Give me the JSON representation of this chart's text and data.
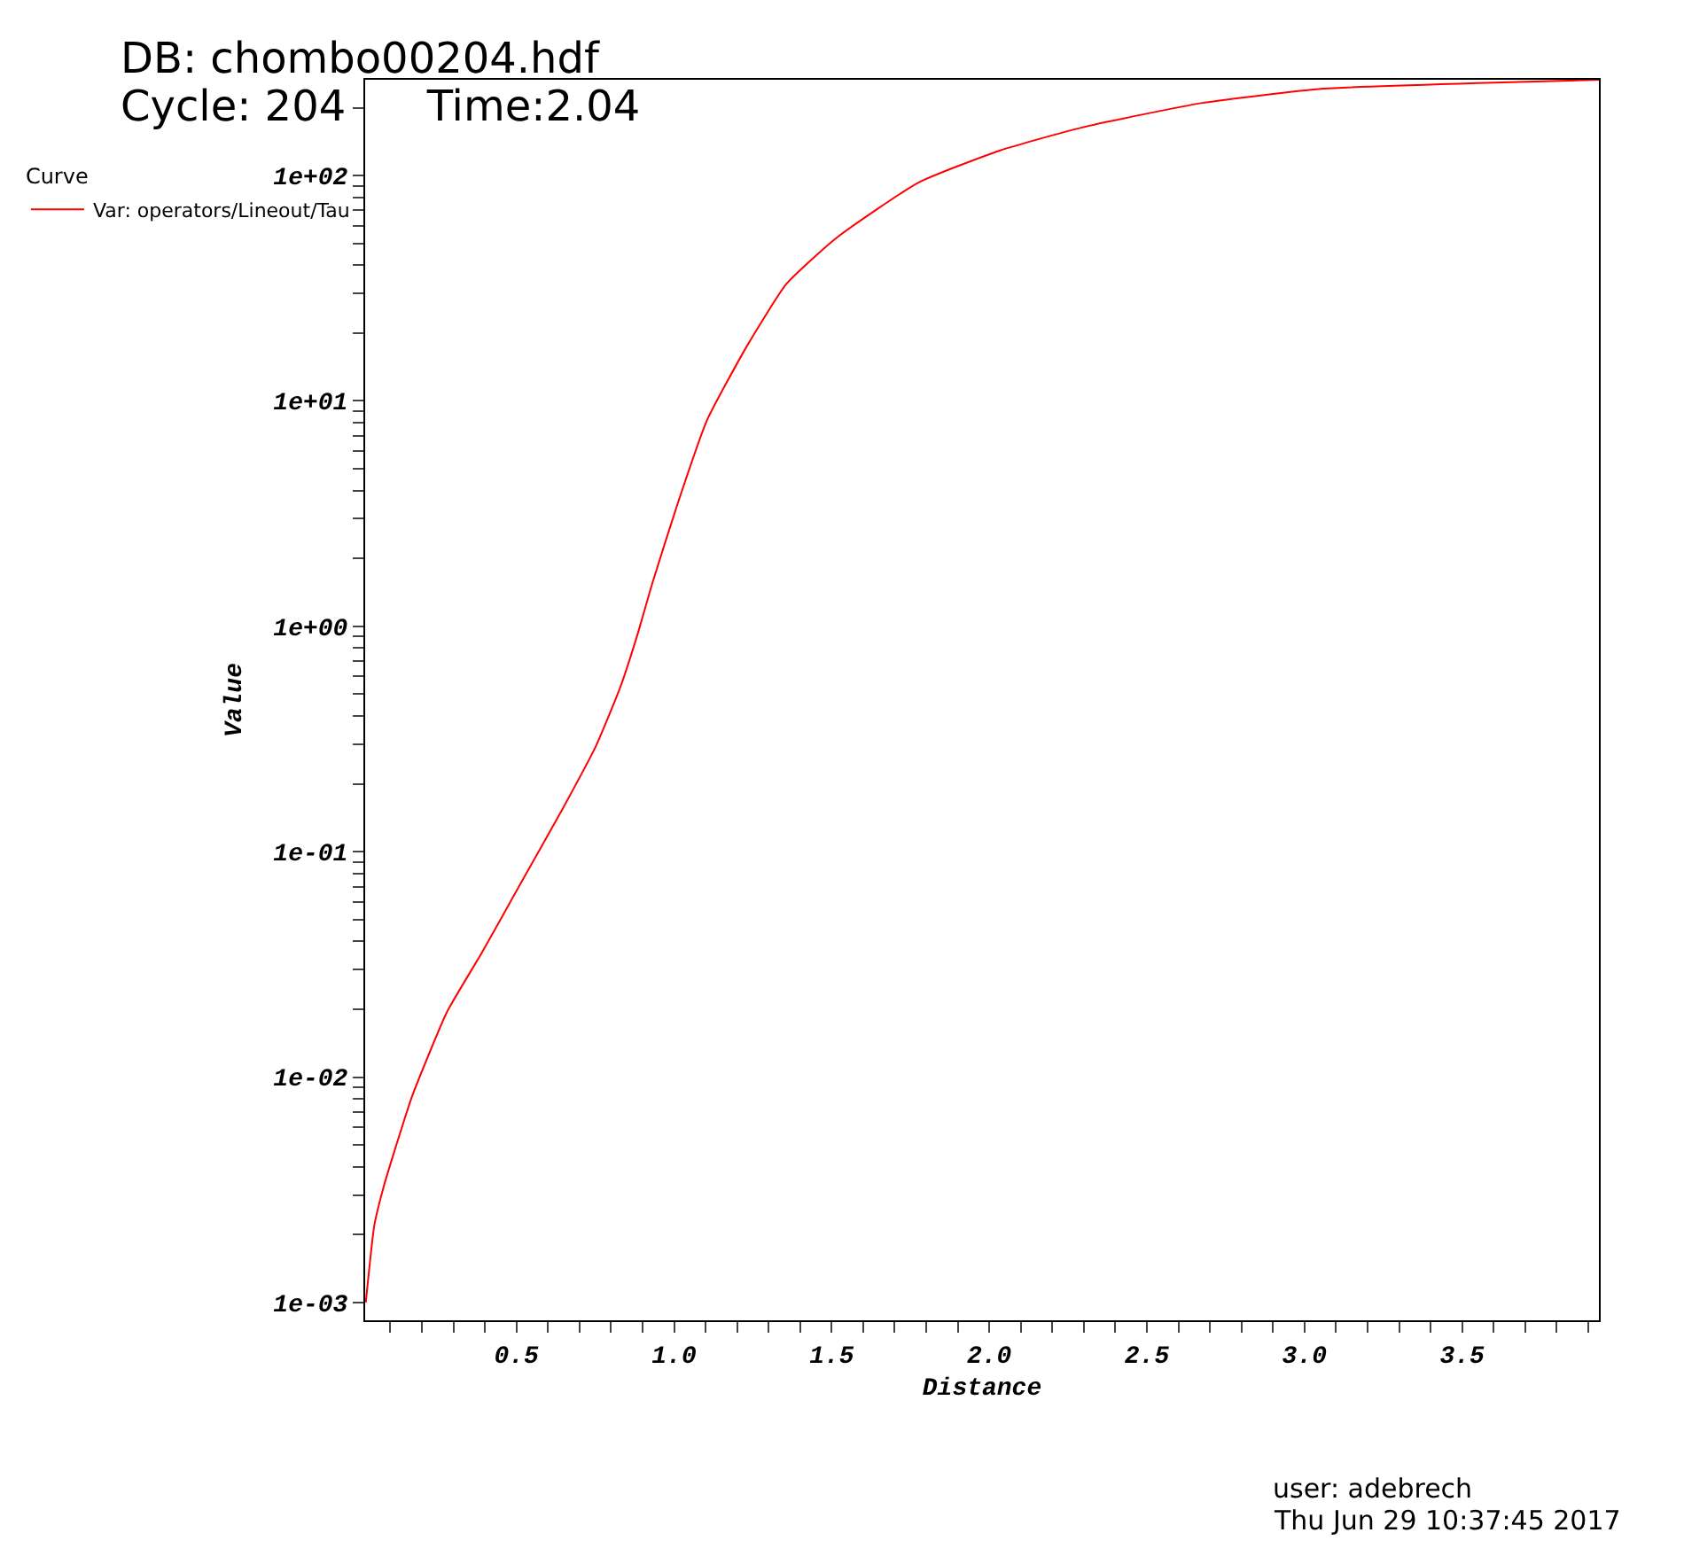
{
  "chart_data": {
    "type": "line",
    "title": "DB: chombo00204.hdf",
    "subtitle": "Cycle: 204      Time:2.04",
    "xlabel": "Distance",
    "ylabel": "Value",
    "legend_title": "Curve",
    "legend": "top left",
    "log": "y",
    "marker": "none",
    "line_style": "solid",
    "x": [
      0.022,
      0.049,
      0.077,
      0.115,
      0.17,
      0.28,
      0.39,
      0.516,
      0.643,
      0.753,
      0.83,
      0.885,
      0.929,
      1.011,
      1.104,
      1.231,
      1.357,
      1.516,
      1.775,
      2.033,
      2.291,
      2.676,
      3.06,
      3.549,
      3.934
    ],
    "series": [
      {
        "name": "Var: operators/Lineout/Tau",
        "color": "#ff0000",
        "values": [
          0.001,
          0.0022,
          0.0032,
          0.0048,
          0.0083,
          0.0195,
          0.0356,
          0.0735,
          0.152,
          0.296,
          0.54,
          0.93,
          1.52,
          3.49,
          8.18,
          17.5,
          33.1,
          53,
          93,
          129,
          163,
          210,
          243,
          257,
          266
        ]
      }
    ],
    "xlim": [
      0.02,
      3.934
    ],
    "ylim": [
      0.000834,
      266
    ],
    "xticks": [
      {
        "value": 0.1,
        "label": null
      },
      {
        "value": 0.2,
        "label": null
      },
      {
        "value": 0.3,
        "label": null
      },
      {
        "value": 0.4,
        "label": null
      },
      {
        "value": 0.5,
        "label": "0.5"
      },
      {
        "value": 0.6,
        "label": null
      },
      {
        "value": 0.7,
        "label": null
      },
      {
        "value": 0.8,
        "label": null
      },
      {
        "value": 0.9,
        "label": null
      },
      {
        "value": 1.0,
        "label": "1.0"
      },
      {
        "value": 1.1,
        "label": null
      },
      {
        "value": 1.2,
        "label": null
      },
      {
        "value": 1.3,
        "label": null
      },
      {
        "value": 1.4,
        "label": null
      },
      {
        "value": 1.5,
        "label": "1.5"
      },
      {
        "value": 1.6,
        "label": null
      },
      {
        "value": 1.7,
        "label": null
      },
      {
        "value": 1.8,
        "label": null
      },
      {
        "value": 1.9,
        "label": null
      },
      {
        "value": 2.0,
        "label": "2.0"
      },
      {
        "value": 2.1,
        "label": null
      },
      {
        "value": 2.2,
        "label": null
      },
      {
        "value": 2.3,
        "label": null
      },
      {
        "value": 2.4,
        "label": null
      },
      {
        "value": 2.5,
        "label": "2.5"
      },
      {
        "value": 2.6,
        "label": null
      },
      {
        "value": 2.7,
        "label": null
      },
      {
        "value": 2.8,
        "label": null
      },
      {
        "value": 2.9,
        "label": null
      },
      {
        "value": 3.0,
        "label": "3.0"
      },
      {
        "value": 3.1,
        "label": null
      },
      {
        "value": 3.2,
        "label": null
      },
      {
        "value": 3.3,
        "label": null
      },
      {
        "value": 3.4,
        "label": null
      },
      {
        "value": 3.5,
        "label": "3.5"
      },
      {
        "value": 3.6,
        "label": null
      },
      {
        "value": 3.7,
        "label": null
      },
      {
        "value": 3.8,
        "label": null
      },
      {
        "value": 3.9,
        "label": null
      }
    ],
    "yticks": [
      {
        "value": 0.001,
        "label": "1e-03"
      },
      {
        "value": 0.002,
        "label": null
      },
      {
        "value": 0.003,
        "label": null
      },
      {
        "value": 0.004,
        "label": null
      },
      {
        "value": 0.005,
        "label": null
      },
      {
        "value": 0.006,
        "label": null
      },
      {
        "value": 0.007,
        "label": null
      },
      {
        "value": 0.008,
        "label": null
      },
      {
        "value": 0.009,
        "label": null
      },
      {
        "value": 0.01,
        "label": "1e-02"
      },
      {
        "value": 0.02,
        "label": null
      },
      {
        "value": 0.03,
        "label": null
      },
      {
        "value": 0.04,
        "label": null
      },
      {
        "value": 0.05,
        "label": null
      },
      {
        "value": 0.06,
        "label": null
      },
      {
        "value": 0.07,
        "label": null
      },
      {
        "value": 0.08,
        "label": null
      },
      {
        "value": 0.09,
        "label": null
      },
      {
        "value": 0.1,
        "label": "1e-01"
      },
      {
        "value": 0.2,
        "label": null
      },
      {
        "value": 0.3,
        "label": null
      },
      {
        "value": 0.4,
        "label": null
      },
      {
        "value": 0.5,
        "label": null
      },
      {
        "value": 0.6,
        "label": null
      },
      {
        "value": 0.7,
        "label": null
      },
      {
        "value": 0.8,
        "label": null
      },
      {
        "value": 0.9,
        "label": null
      },
      {
        "value": 1,
        "label": "1e+00"
      },
      {
        "value": 2,
        "label": null
      },
      {
        "value": 3,
        "label": null
      },
      {
        "value": 4,
        "label": null
      },
      {
        "value": 5,
        "label": null
      },
      {
        "value": 6,
        "label": null
      },
      {
        "value": 7,
        "label": null
      },
      {
        "value": 8,
        "label": null
      },
      {
        "value": 9,
        "label": null
      },
      {
        "value": 10,
        "label": "1e+01"
      },
      {
        "value": 20,
        "label": null
      },
      {
        "value": 30,
        "label": null
      },
      {
        "value": 40,
        "label": null
      },
      {
        "value": 50,
        "label": null
      },
      {
        "value": 60,
        "label": null
      },
      {
        "value": 70,
        "label": null
      },
      {
        "value": 80,
        "label": null
      },
      {
        "value": 90,
        "label": null
      },
      {
        "value": 100,
        "label": "1e+02"
      },
      {
        "value": 200,
        "label": null
      }
    ],
    "annotations": [
      "user: adebrech",
      "Thu Jun 29 10:37:45 2017"
    ]
  }
}
